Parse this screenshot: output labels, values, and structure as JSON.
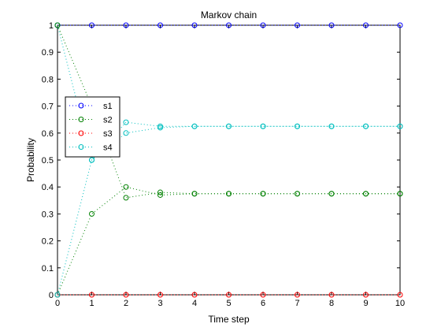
{
  "chart_data": {
    "type": "line",
    "title": "Markov chain",
    "xlabel": "Time step",
    "ylabel": "Probability",
    "xlim": [
      0,
      10
    ],
    "ylim": [
      0,
      1
    ],
    "xticks": [
      0,
      1,
      2,
      3,
      4,
      5,
      6,
      7,
      8,
      9,
      10
    ],
    "yticks": [
      0,
      0.1,
      0.2,
      0.3,
      0.4,
      0.5,
      0.6,
      0.7,
      0.8,
      0.9,
      1
    ],
    "grid": false,
    "legend_position": "left",
    "line_style": "dotted",
    "marker": "circle",
    "x": [
      0,
      1,
      2,
      3,
      4,
      5,
      6,
      7,
      8,
      9,
      10
    ],
    "series": [
      {
        "name": "s1",
        "color": "#0000ff",
        "values": [
          1,
          1,
          1,
          1,
          1,
          1,
          1,
          1,
          1,
          1,
          1
        ]
      },
      {
        "name": "s2",
        "color": "#008000",
        "values": [
          0,
          0.3,
          0.4,
          0.37,
          0.375,
          0.375,
          0.375,
          0.375,
          0.375,
          0.375,
          0.375
        ]
      },
      {
        "name": "s3",
        "color": "#ff0000",
        "values": [
          0,
          0,
          0,
          0,
          0,
          0,
          0,
          0,
          0,
          0,
          0
        ]
      },
      {
        "name": "s4",
        "color": "#00bfbf",
        "values": [
          1,
          0.5,
          0.64,
          0.625,
          0.625,
          0.625,
          0.625,
          0.625,
          0.625,
          0.625,
          0.625
        ]
      },
      {
        "name": "",
        "color": "#008000",
        "values": [
          1,
          0.7,
          0.36,
          0.38,
          0.375,
          0.375,
          0.375,
          0.375,
          0.375,
          0.375,
          0.375
        ]
      },
      {
        "name": "",
        "color": "#00bfbf",
        "values": [
          0,
          0.5,
          0.6,
          0.62,
          0.625,
          0.625,
          0.625,
          0.625,
          0.625,
          0.625,
          0.625
        ]
      }
    ]
  }
}
